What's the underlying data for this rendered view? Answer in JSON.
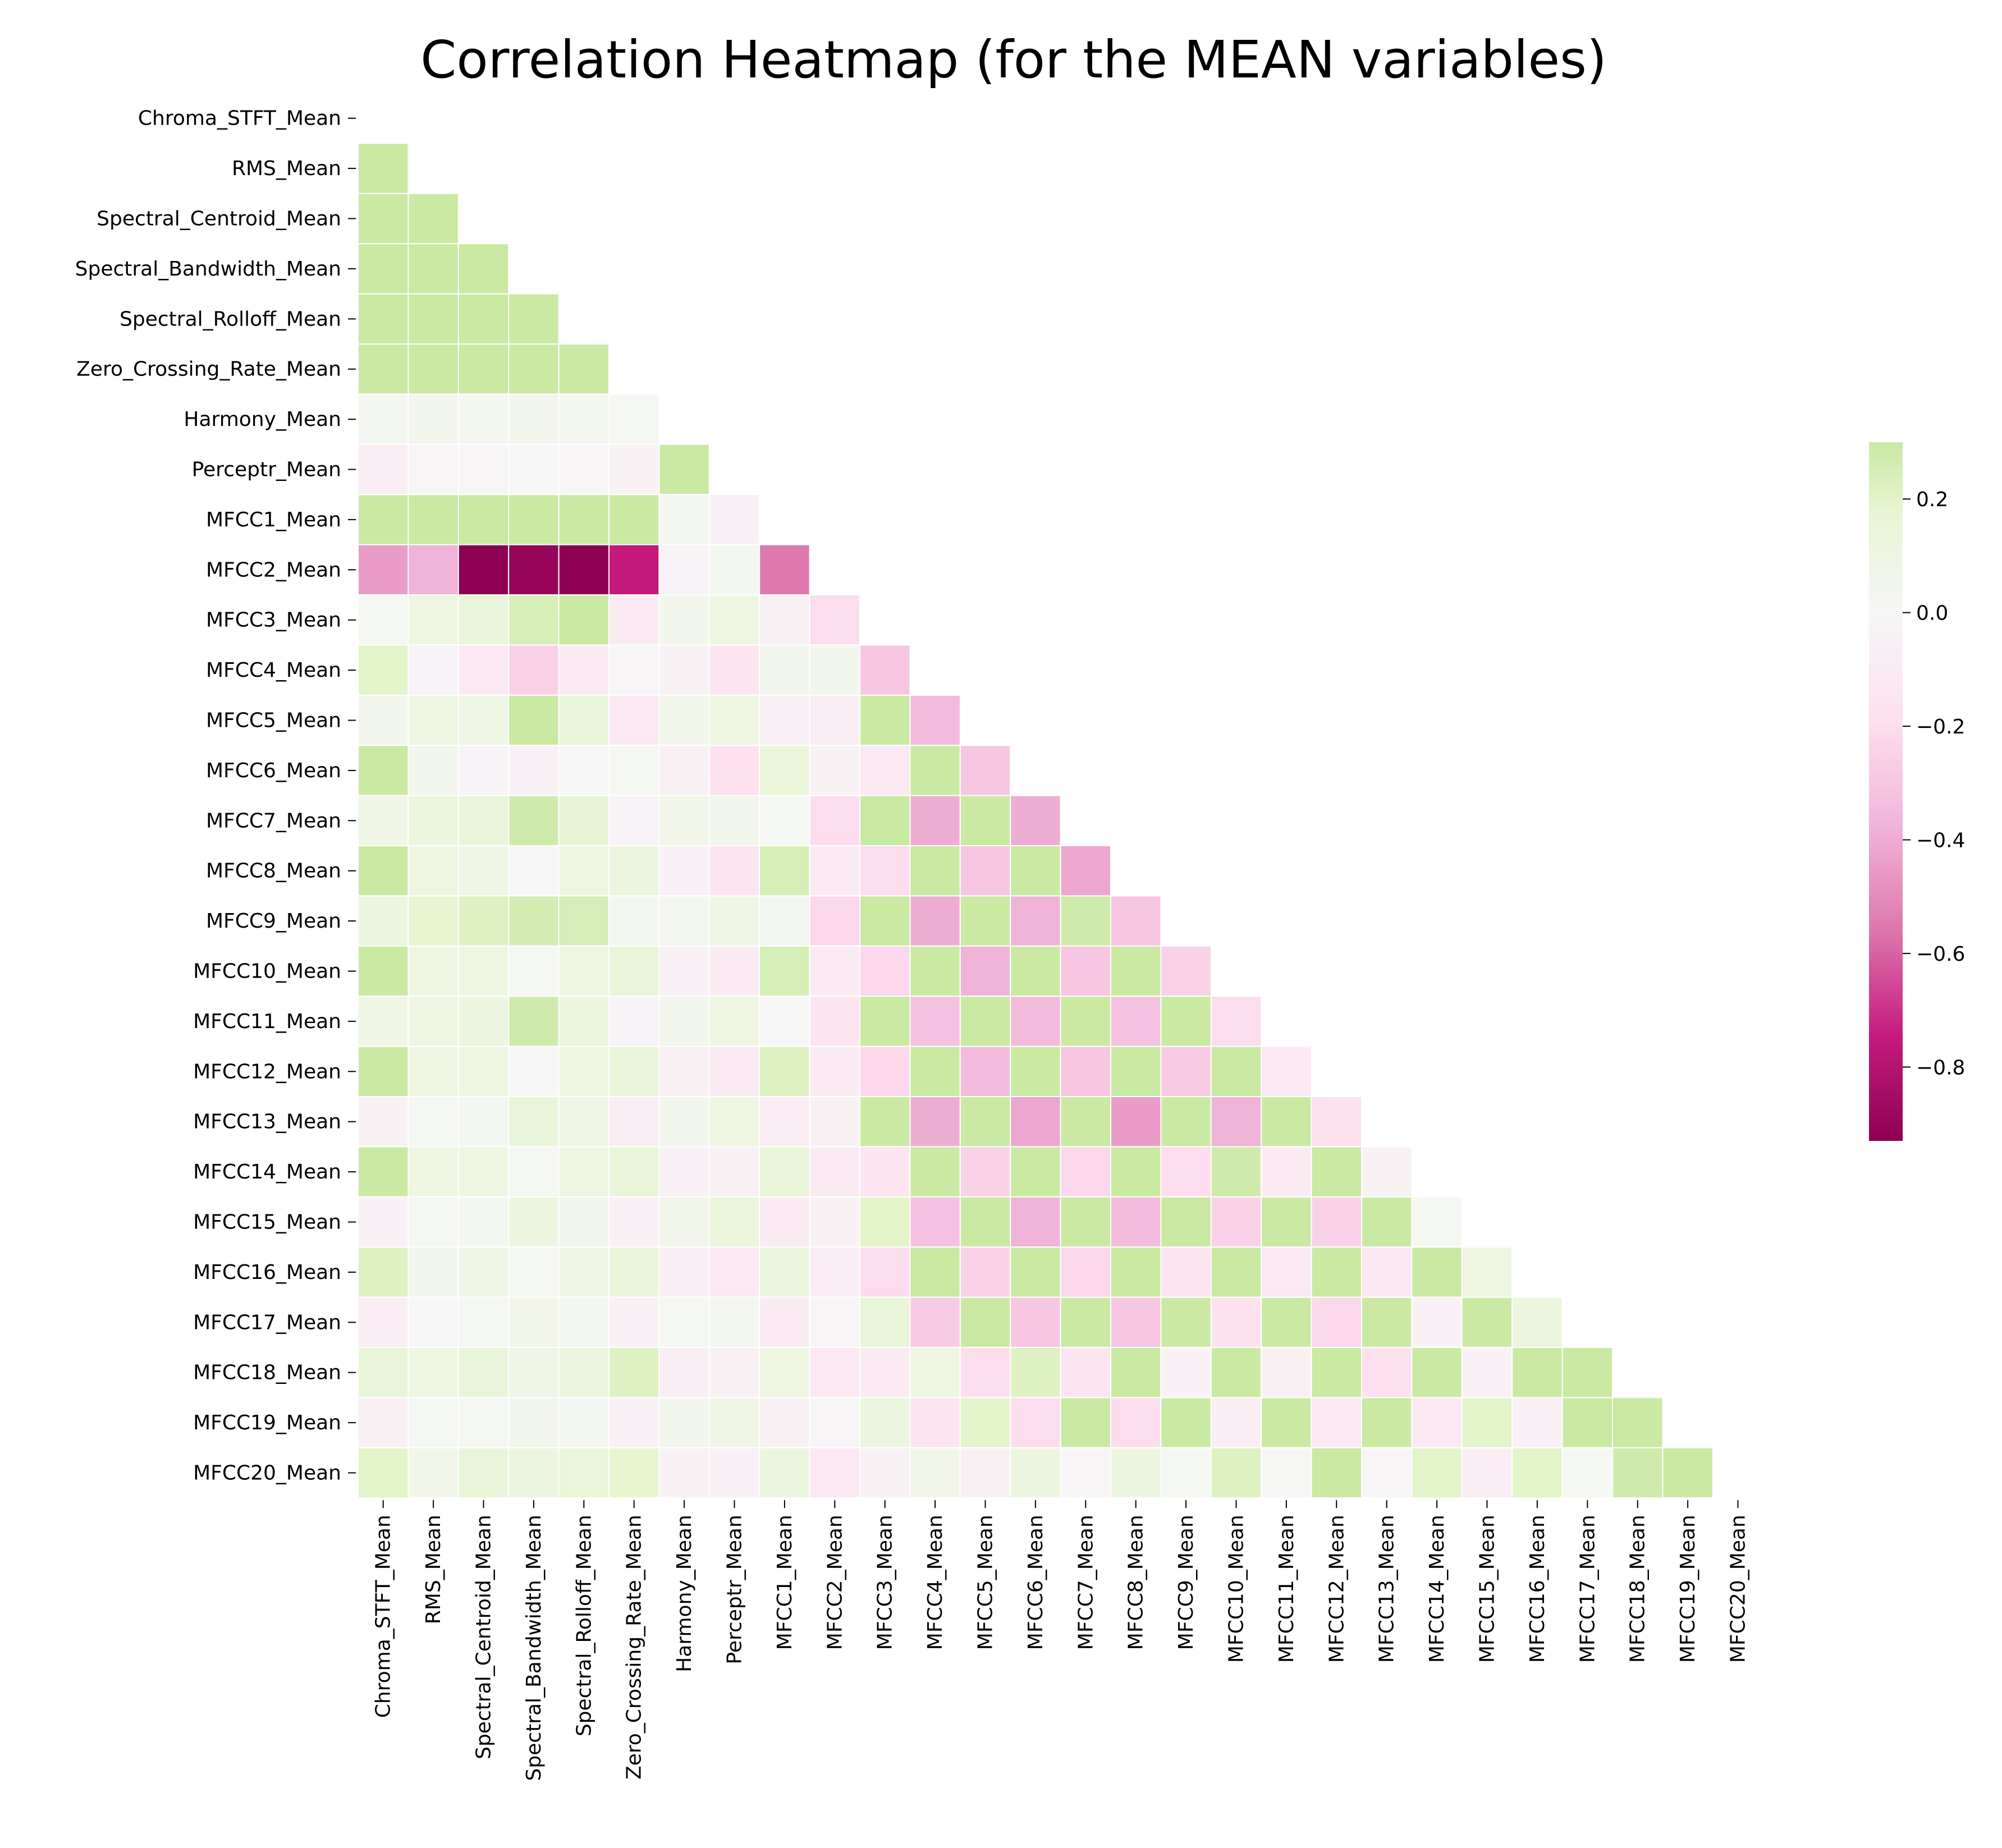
{
  "chart_data": {
    "type": "heatmap",
    "title": "Correlation Heatmap (for the MEAN variables)",
    "mask": "upper-triangle-and-diagonal",
    "labels": [
      "Chroma_STFT_Mean",
      "RMS_Mean",
      "Spectral_Centroid_Mean",
      "Spectral_Bandwidth_Mean",
      "Spectral_Rolloff_Mean",
      "Zero_Crossing_Rate_Mean",
      "Harmony_Mean",
      "Perceptr_Mean",
      "MFCC1_Mean",
      "MFCC2_Mean",
      "MFCC3_Mean",
      "MFCC4_Mean",
      "MFCC5_Mean",
      "MFCC6_Mean",
      "MFCC7_Mean",
      "MFCC8_Mean",
      "MFCC9_Mean",
      "MFCC10_Mean",
      "MFCC11_Mean",
      "MFCC12_Mean",
      "MFCC13_Mean",
      "MFCC14_Mean",
      "MFCC15_Mean",
      "MFCC16_Mean",
      "MFCC17_Mean",
      "MFCC18_Mean",
      "MFCC19_Mean",
      "MFCC20_Mean"
    ],
    "colormap": "PiYG",
    "vmin": -0.93,
    "vmax": 0.3,
    "colorbar_ticks": [
      0.2,
      0.0,
      -0.2,
      -0.4,
      -0.6,
      -0.8
    ],
    "colorbar_tick_labels": [
      "0.2",
      "0.0",
      "−0.2",
      "−0.4",
      "−0.6",
      "−0.8"
    ],
    "lower_triangle_values": [
      [],
      [
        0.55
      ],
      [
        0.6,
        0.65
      ],
      [
        0.58,
        0.6,
        0.9
      ],
      [
        0.6,
        0.62,
        0.98,
        0.95
      ],
      [
        0.55,
        0.6,
        0.88,
        0.75,
        0.85
      ],
      [
        0.03,
        0.05,
        0.04,
        0.05,
        0.04,
        0.02
      ],
      [
        -0.08,
        -0.02,
        -0.02,
        0.0,
        -0.02,
        -0.04,
        0.3
      ],
      [
        0.4,
        0.5,
        0.6,
        0.6,
        0.6,
        0.5,
        0.03,
        -0.05
      ],
      [
        -0.45,
        -0.38,
        -0.93,
        -0.9,
        -0.93,
        -0.75,
        -0.03,
        0.03,
        -0.55
      ],
      [
        0.02,
        0.1,
        0.15,
        0.25,
        0.3,
        -0.1,
        0.05,
        0.1,
        -0.04,
        -0.2
      ],
      [
        0.2,
        -0.03,
        -0.12,
        -0.25,
        -0.1,
        -0.02,
        -0.04,
        -0.15,
        0.05,
        0.05,
        -0.3
      ],
      [
        0.05,
        0.1,
        0.08,
        0.3,
        0.15,
        -0.12,
        0.06,
        0.1,
        -0.05,
        -0.08,
        0.3,
        -0.35
      ],
      [
        0.3,
        0.05,
        -0.03,
        -0.05,
        0.0,
        0.02,
        -0.06,
        -0.18,
        0.14,
        -0.04,
        -0.12,
        0.3,
        -0.3
      ],
      [
        0.08,
        0.13,
        0.15,
        0.28,
        0.16,
        -0.03,
        0.07,
        0.05,
        0.02,
        -0.2,
        0.3,
        -0.4,
        0.3,
        -0.4
      ],
      [
        0.3,
        0.1,
        0.08,
        0.0,
        0.1,
        0.12,
        -0.05,
        -0.15,
        0.25,
        -0.1,
        -0.2,
        0.3,
        -0.3,
        0.3,
        -0.42
      ],
      [
        0.12,
        0.18,
        0.22,
        0.26,
        0.25,
        0.03,
        0.04,
        0.08,
        0.03,
        -0.22,
        0.3,
        -0.4,
        0.3,
        -0.38,
        0.28,
        -0.3
      ],
      [
        0.3,
        0.1,
        0.1,
        0.02,
        0.1,
        0.15,
        -0.05,
        -0.1,
        0.25,
        -0.1,
        -0.22,
        0.3,
        -0.38,
        0.3,
        -0.3,
        0.3,
        -0.25
      ],
      [
        0.08,
        0.1,
        0.12,
        0.28,
        0.13,
        -0.03,
        0.05,
        0.1,
        0.0,
        -0.15,
        0.3,
        -0.32,
        0.3,
        -0.35,
        0.3,
        -0.32,
        0.3,
        -0.2
      ],
      [
        0.3,
        0.1,
        0.1,
        0.0,
        0.1,
        0.15,
        -0.06,
        -0.1,
        0.22,
        -0.1,
        -0.22,
        0.3,
        -0.35,
        0.3,
        -0.3,
        0.3,
        -0.28,
        0.3,
        -0.12
      ],
      [
        -0.04,
        0.02,
        0.03,
        0.15,
        0.08,
        -0.08,
        0.05,
        0.1,
        -0.08,
        -0.06,
        0.3,
        -0.4,
        0.3,
        -0.42,
        0.3,
        -0.45,
        0.3,
        -0.38,
        0.3,
        -0.18
      ],
      [
        0.3,
        0.1,
        0.1,
        0.02,
        0.1,
        0.15,
        -0.05,
        -0.06,
        0.15,
        -0.1,
        -0.15,
        0.3,
        -0.25,
        0.3,
        -0.22,
        0.3,
        -0.2,
        0.28,
        -0.1,
        0.3,
        -0.04
      ],
      [
        -0.05,
        0.02,
        0.03,
        0.12,
        0.05,
        -0.05,
        0.06,
        0.14,
        -0.1,
        -0.04,
        0.2,
        -0.32,
        0.3,
        -0.38,
        0.3,
        -0.35,
        0.3,
        -0.25,
        0.3,
        -0.25,
        0.3,
        0.02
      ],
      [
        0.22,
        0.05,
        0.08,
        0.02,
        0.08,
        0.15,
        -0.07,
        -0.12,
        0.12,
        -0.08,
        -0.2,
        0.3,
        -0.25,
        0.3,
        -0.22,
        0.3,
        -0.15,
        0.3,
        -0.12,
        0.3,
        -0.14,
        0.3,
        0.1
      ],
      [
        -0.08,
        0.0,
        0.02,
        0.07,
        0.03,
        -0.05,
        0.02,
        0.04,
        -0.1,
        -0.02,
        0.15,
        -0.28,
        0.3,
        -0.3,
        0.3,
        -0.3,
        0.3,
        -0.18,
        0.3,
        -0.22,
        0.3,
        -0.05,
        0.3,
        0.12
      ],
      [
        0.15,
        0.1,
        0.15,
        0.08,
        0.12,
        0.22,
        -0.07,
        -0.06,
        0.1,
        -0.12,
        -0.1,
        0.1,
        -0.2,
        0.22,
        -0.15,
        0.3,
        -0.05,
        0.3,
        -0.06,
        0.3,
        -0.18,
        0.3,
        -0.05,
        0.3,
        0.3
      ],
      [
        -0.06,
        0.02,
        0.02,
        0.05,
        0.03,
        -0.05,
        0.05,
        0.08,
        -0.06,
        -0.02,
        0.12,
        -0.15,
        0.2,
        -0.2,
        0.3,
        -0.2,
        0.3,
        -0.08,
        0.3,
        -0.12,
        0.3,
        -0.12,
        0.2,
        -0.05,
        0.3,
        0.3
      ],
      [
        0.2,
        0.07,
        0.15,
        0.12,
        0.14,
        0.18,
        -0.04,
        -0.05,
        0.12,
        -0.12,
        -0.04,
        0.06,
        -0.06,
        0.12,
        -0.02,
        0.12,
        0.02,
        0.22,
        0.01,
        0.3,
        -0.02,
        0.2,
        -0.08,
        0.2,
        0.02,
        0.28,
        0.3
      ]
    ]
  }
}
